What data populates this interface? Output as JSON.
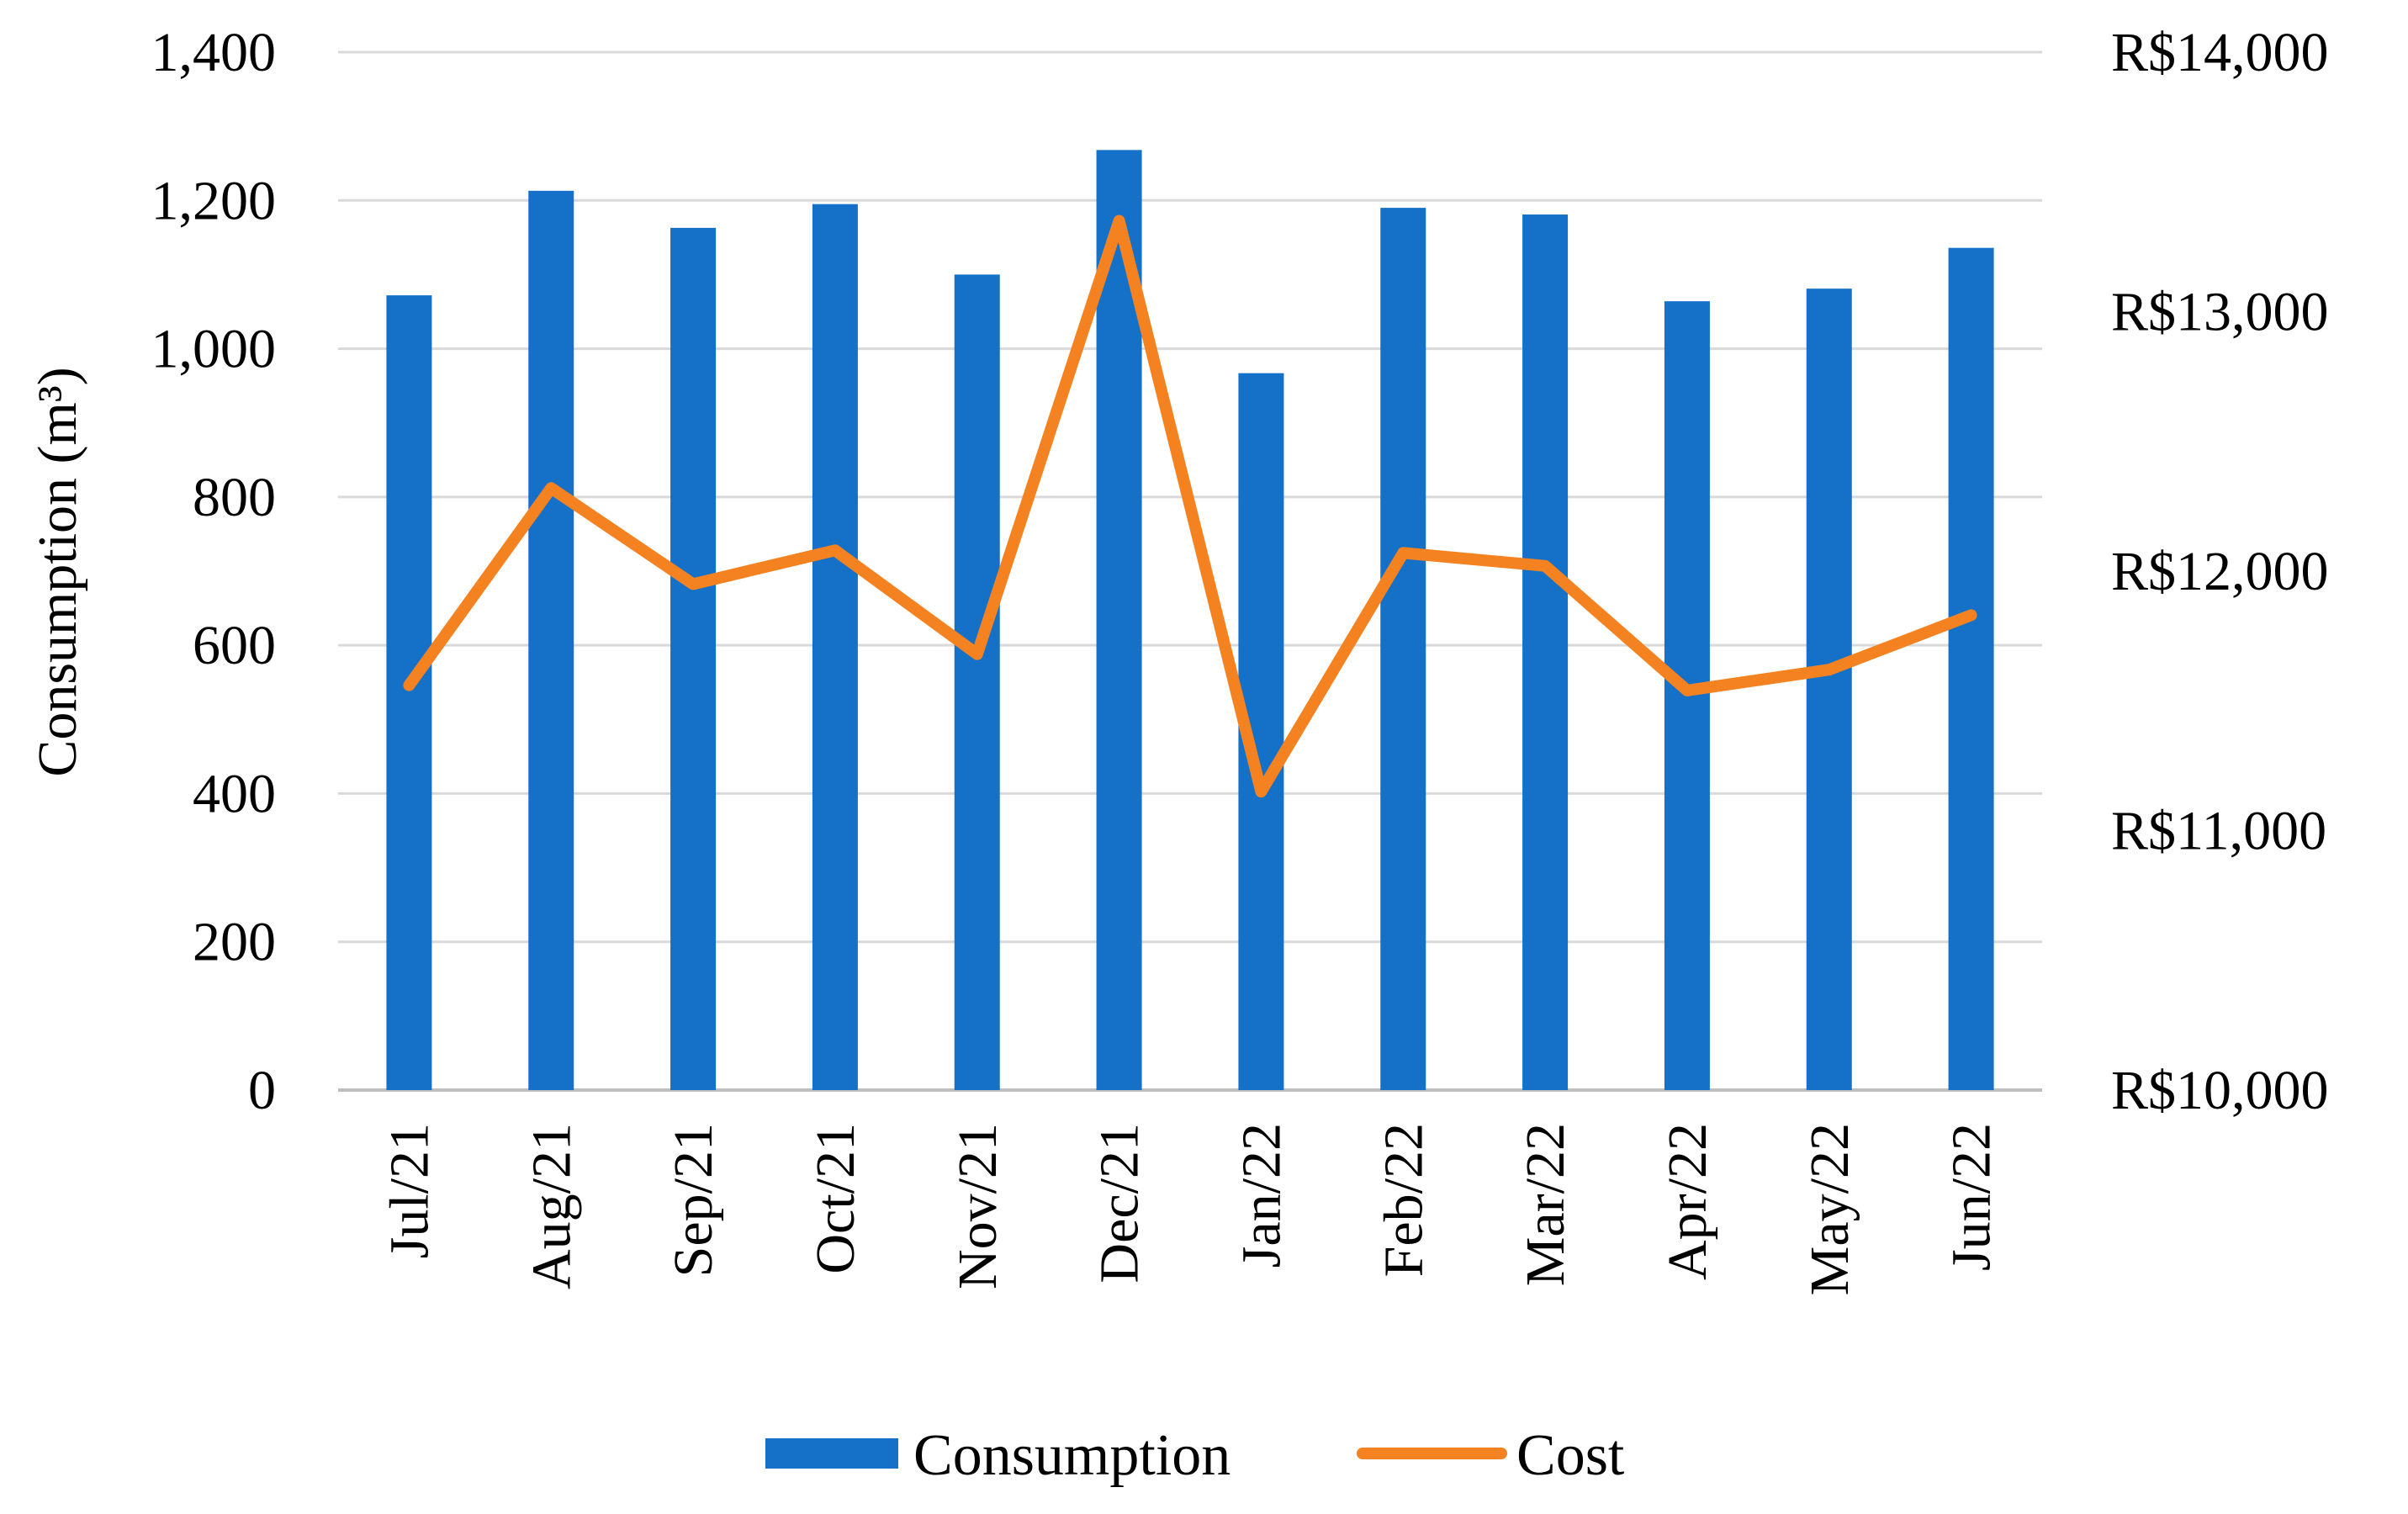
{
  "chart_data": {
    "type": "bar",
    "title": "",
    "xlabel": "",
    "ylabel": "Consumption (m³)",
    "y2label": "",
    "categories": [
      "Jul/21",
      "Aug/21",
      "Sep/21",
      "Oct/21",
      "Nov/21",
      "Dec/21",
      "Jan/22",
      "Feb/22",
      "Mar/22",
      "Apr/22",
      "May/22",
      "Jun/22"
    ],
    "ylim": [
      0,
      1400
    ],
    "yticks": [
      0,
      200,
      400,
      600,
      800,
      1000,
      1200,
      1400
    ],
    "ytick_labels": [
      "0",
      "200",
      "400",
      "600",
      "800",
      "1,000",
      "1,200",
      "1,400"
    ],
    "y2lim": [
      10000,
      14000
    ],
    "y2ticks": [
      10000,
      11000,
      12000,
      13000,
      14000
    ],
    "y2tick_labels": [
      "R$10,000",
      "R$11,000",
      "R$12,000",
      "R$13,000",
      "R$14,000"
    ],
    "grid": true,
    "legend_position": "bottom",
    "series": [
      {
        "name": "Consumption",
        "kind": "bar",
        "axis": "left",
        "color": "#1570C8",
        "values": [
          1072,
          1213,
          1163,
          1195,
          1100,
          1268,
          967,
          1190,
          1181,
          1064,
          1081,
          1136
        ]
      },
      {
        "name": "Cost",
        "kind": "line",
        "axis": "right",
        "color": "#F58220",
        "values": [
          11560,
          12320,
          11950,
          12080,
          11680,
          13350,
          11150,
          12070,
          12020,
          11540,
          11620,
          11830
        ]
      }
    ]
  }
}
